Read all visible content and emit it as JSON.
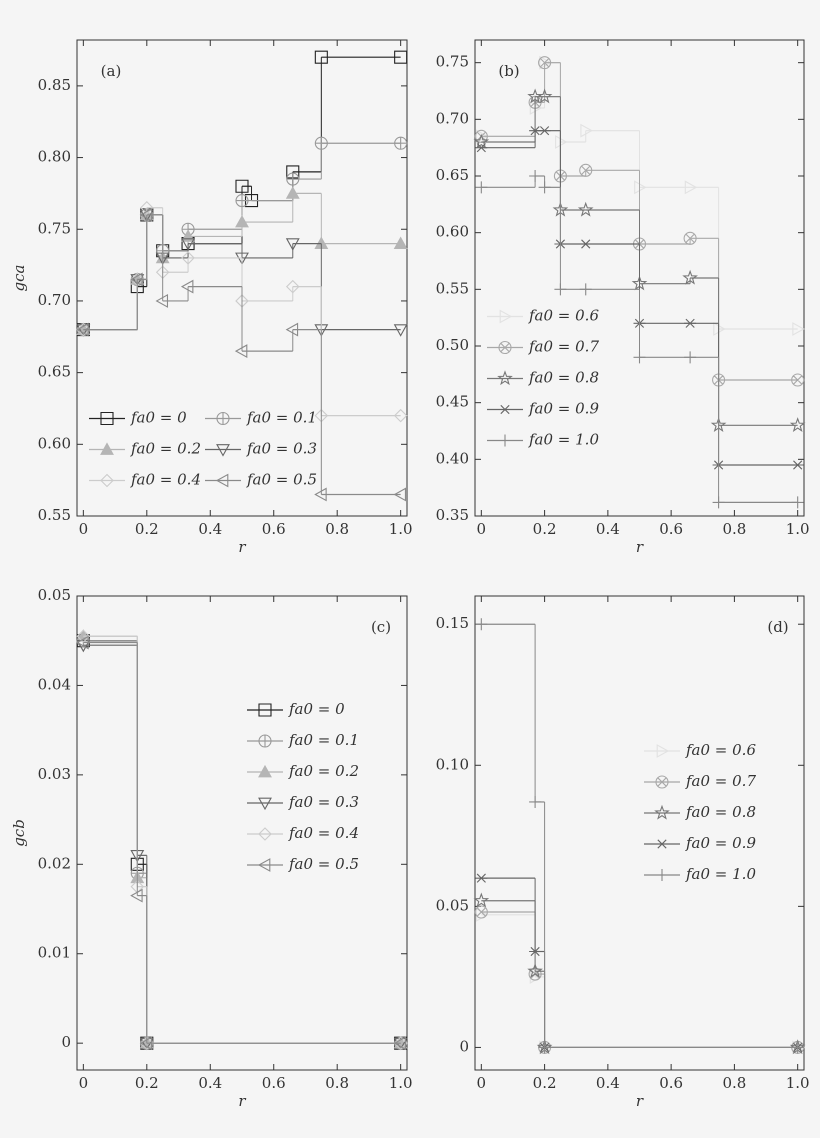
{
  "chart_data": [
    {
      "type": "line",
      "panel_label": "(a)",
      "panel_label_position": "upper left",
      "xlabel": "r",
      "ylabel": "gca",
      "xlim": [
        -0.02,
        1.02
      ],
      "ylim": [
        0.55,
        0.882
      ],
      "xticks": [
        0,
        0.2,
        0.4,
        0.6,
        0.8,
        {
          "value": 1,
          "label": "1.0"
        }
      ],
      "yticks": [
        0.55,
        {
          "value": 0.6,
          "label": "0.60"
        },
        0.65,
        {
          "value": 0.7,
          "label": "0.70"
        },
        0.75,
        {
          "value": 0.8,
          "label": "0.80"
        },
        0.85
      ],
      "legend": "lower left",
      "legend_columns": 2,
      "step": "post",
      "series": [
        {
          "name": "fa0 = 0",
          "color": "#222222",
          "marker": "square",
          "x": [
            0,
            0.17,
            0.2,
            0.25,
            0.33,
            0.5,
            0.53,
            0.66,
            0.75,
            1
          ],
          "values": [
            0.68,
            0.71,
            0.76,
            0.735,
            0.74,
            0.78,
            0.77,
            0.79,
            0.87,
            0.87
          ]
        },
        {
          "name": "fa0 = 0.1",
          "color": "#999999",
          "marker": "circle-plus",
          "x": [
            0,
            0.17,
            0.2,
            0.25,
            0.33,
            0.5,
            0.66,
            0.75,
            1
          ],
          "values": [
            0.68,
            0.715,
            0.76,
            0.735,
            0.75,
            0.77,
            0.785,
            0.81,
            0.81
          ]
        },
        {
          "name": "fa0 = 0.2",
          "color": "#b5b5b5",
          "marker": "triangle-up",
          "filled": true,
          "x": [
            0,
            0.17,
            0.2,
            0.25,
            0.33,
            0.5,
            0.66,
            0.75,
            1
          ],
          "values": [
            0.68,
            0.715,
            0.76,
            0.73,
            0.745,
            0.755,
            0.775,
            0.74,
            0.74
          ]
        },
        {
          "name": "fa0 = 0.3",
          "color": "#666666",
          "marker": "triangle-down",
          "x": [
            0,
            0.17,
            0.2,
            0.25,
            0.33,
            0.5,
            0.66,
            0.75,
            1
          ],
          "values": [
            0.68,
            0.715,
            0.76,
            0.73,
            0.74,
            0.73,
            0.74,
            0.68,
            0.68
          ]
        },
        {
          "name": "fa0 = 0.4",
          "color": "#cccccc",
          "marker": "diamond",
          "x": [
            0,
            0.17,
            0.2,
            0.25,
            0.33,
            0.5,
            0.66,
            0.75,
            1
          ],
          "values": [
            0.68,
            0.715,
            0.765,
            0.72,
            0.73,
            0.7,
            0.71,
            0.62,
            0.62
          ]
        },
        {
          "name": "fa0 = 0.5",
          "color": "#8a8a8a",
          "marker": "triangle-left",
          "x": [
            0,
            0.17,
            0.2,
            0.25,
            0.33,
            0.5,
            0.66,
            0.75,
            1
          ],
          "values": [
            0.68,
            0.715,
            0.76,
            0.7,
            0.71,
            0.665,
            0.68,
            0.565,
            0.565
          ]
        }
      ]
    },
    {
      "type": "line",
      "panel_label": "(b)",
      "panel_label_position": "upper left",
      "xlabel": "r",
      "xlim": [
        -0.02,
        1.02
      ],
      "ylim": [
        0.35,
        0.77
      ],
      "xticks": [
        0,
        0.2,
        0.4,
        0.6,
        0.8,
        {
          "value": 1,
          "label": "1.0"
        }
      ],
      "yticks": [
        0.35,
        {
          "value": 0.4,
          "label": "0.40"
        },
        0.45,
        {
          "value": 0.5,
          "label": "0.50"
        },
        0.55,
        {
          "value": 0.6,
          "label": "0.60"
        },
        0.65,
        {
          "value": 0.7,
          "label": "0.70"
        },
        0.75
      ],
      "legend": "lower left",
      "legend_columns": 1,
      "step": "post",
      "series": [
        {
          "name": "fa0 = 0.6",
          "color": "#e2e2e2",
          "marker": "triangle-right",
          "x": [
            0,
            0.17,
            0.2,
            0.25,
            0.33,
            0.5,
            0.66,
            0.75,
            1
          ],
          "values": [
            0.685,
            0.71,
            0.75,
            0.68,
            0.69,
            0.64,
            0.64,
            0.515,
            0.515
          ]
        },
        {
          "name": "fa0 = 0.7",
          "color": "#a8a8a8",
          "marker": "circle-x",
          "x": [
            0,
            0.17,
            0.2,
            0.25,
            0.33,
            0.5,
            0.66,
            0.75,
            1
          ],
          "values": [
            0.685,
            0.715,
            0.75,
            0.65,
            0.655,
            0.59,
            0.595,
            0.47,
            0.47
          ]
        },
        {
          "name": "fa0 = 0.8",
          "color": "#777777",
          "marker": "star",
          "x": [
            0,
            0.17,
            0.2,
            0.25,
            0.33,
            0.5,
            0.66,
            0.75,
            1
          ],
          "values": [
            0.68,
            0.72,
            0.72,
            0.62,
            0.62,
            0.555,
            0.56,
            0.43,
            0.43
          ]
        },
        {
          "name": "fa0 = 0.9",
          "color": "#666666",
          "marker": "asterisk",
          "x": [
            0,
            0.17,
            0.2,
            0.25,
            0.33,
            0.5,
            0.66,
            0.75,
            1
          ],
          "values": [
            0.675,
            0.69,
            0.69,
            0.59,
            0.59,
            0.52,
            0.52,
            0.395,
            0.395
          ]
        },
        {
          "name": "fa0 = 1.0",
          "color": "#888888",
          "marker": "plus",
          "x": [
            0,
            0.17,
            0.2,
            0.25,
            0.33,
            0.5,
            0.66,
            0.75,
            1
          ],
          "values": [
            0.64,
            0.65,
            0.64,
            0.55,
            0.55,
            0.49,
            0.49,
            0.362,
            0.362
          ]
        }
      ]
    },
    {
      "type": "line",
      "panel_label": "(c)",
      "panel_label_position": "upper right",
      "xlabel": "r",
      "ylabel": "gcb",
      "xlim": [
        -0.02,
        1.02
      ],
      "ylim": [
        -0.003,
        0.05
      ],
      "xticks": [
        0,
        0.2,
        0.4,
        0.6,
        0.8,
        {
          "value": 1,
          "label": "1.0"
        }
      ],
      "yticks": [
        0,
        0.01,
        0.02,
        0.03,
        0.04,
        0.05
      ],
      "legend": "center right",
      "legend_columns": 1,
      "step": "post",
      "series": [
        {
          "name": "fa0 = 0",
          "color": "#222222",
          "marker": "square",
          "x": [
            0,
            0.17,
            0.2,
            1
          ],
          "values": [
            0.045,
            0.02,
            0,
            0
          ]
        },
        {
          "name": "fa0 = 0.1",
          "color": "#999999",
          "marker": "circle-plus",
          "x": [
            0,
            0.17,
            0.2,
            1
          ],
          "values": [
            0.045,
            0.019,
            0,
            0
          ]
        },
        {
          "name": "fa0 = 0.2",
          "color": "#b5b5b5",
          "marker": "triangle-up",
          "filled": true,
          "x": [
            0,
            0.17,
            0.2,
            1
          ],
          "values": [
            0.0455,
            0.0185,
            0,
            0
          ]
        },
        {
          "name": "fa0 = 0.3",
          "color": "#666666",
          "marker": "triangle-down",
          "x": [
            0,
            0.17,
            0.2,
            1
          ],
          "values": [
            0.0445,
            0.021,
            0,
            0
          ]
        },
        {
          "name": "fa0 = 0.4",
          "color": "#cccccc",
          "marker": "diamond",
          "x": [
            0,
            0.17,
            0.2,
            1
          ],
          "values": [
            0.0455,
            0.0175,
            0,
            0
          ]
        },
        {
          "name": "fa0 = 0.5",
          "color": "#8a8a8a",
          "marker": "triangle-left",
          "x": [
            0,
            0.17,
            0.2,
            1
          ],
          "values": [
            0.0448,
            0.0165,
            0,
            0
          ]
        }
      ]
    },
    {
      "type": "line",
      "panel_label": "(d)",
      "panel_label_position": "upper right",
      "xlabel": "r",
      "xlim": [
        -0.02,
        1.02
      ],
      "ylim": [
        -0.008,
        0.16
      ],
      "xticks": [
        0,
        0.2,
        0.4,
        0.6,
        0.8,
        {
          "value": 1,
          "label": "1.0"
        }
      ],
      "yticks": [
        0,
        0.05,
        {
          "value": 0.1,
          "label": "0.10"
        },
        0.15
      ],
      "legend": "center right",
      "legend_columns": 1,
      "step": "post",
      "series": [
        {
          "name": "fa0 = 0.6",
          "color": "#e2e2e2",
          "marker": "triangle-right",
          "x": [
            0,
            0.17,
            0.2,
            1
          ],
          "values": [
            0.047,
            0.025,
            0,
            0
          ]
        },
        {
          "name": "fa0 = 0.7",
          "color": "#a8a8a8",
          "marker": "circle-x",
          "x": [
            0,
            0.17,
            0.2,
            1
          ],
          "values": [
            0.048,
            0.026,
            0,
            0
          ]
        },
        {
          "name": "fa0 = 0.8",
          "color": "#777777",
          "marker": "star",
          "x": [
            0,
            0.17,
            0.2,
            1
          ],
          "values": [
            0.052,
            0.027,
            0,
            0
          ]
        },
        {
          "name": "fa0 = 0.9",
          "color": "#666666",
          "marker": "asterisk",
          "x": [
            0,
            0.17,
            0.2,
            1
          ],
          "values": [
            0.06,
            0.034,
            0,
            0
          ]
        },
        {
          "name": "fa0 = 1.0",
          "color": "#888888",
          "marker": "plus",
          "x": [
            0,
            0.17,
            0.2,
            1
          ],
          "values": [
            0.15,
            0.087,
            0,
            0
          ]
        }
      ]
    }
  ]
}
